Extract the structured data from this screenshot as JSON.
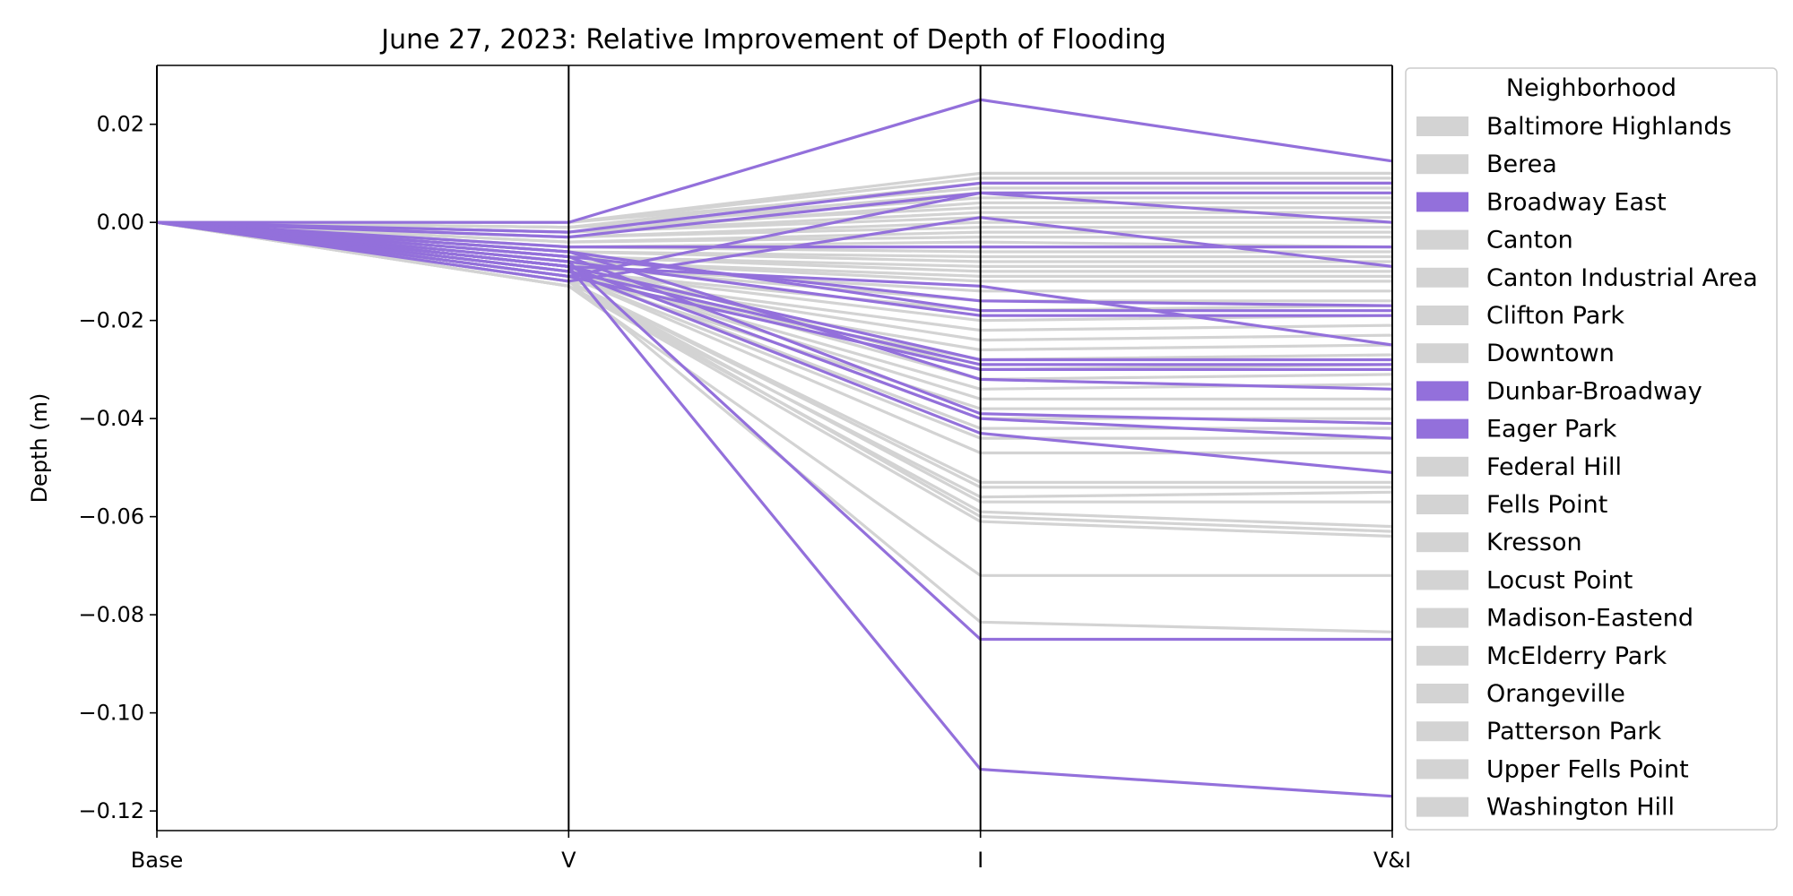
{
  "chart_data": {
    "type": "line",
    "title": "June 27, 2023: Relative Improvement of Depth of Flooding",
    "xlabel": "",
    "ylabel": "Depth (m)",
    "categories": [
      "Base",
      "V",
      "I",
      "V&I"
    ],
    "ylim": [
      -0.124,
      0.032
    ],
    "yticks": [
      0.02,
      0.0,
      -0.02,
      -0.04,
      -0.06,
      -0.08,
      -0.1,
      -0.12
    ],
    "ytick_labels": [
      "0.02",
      "0.00",
      "−0.02",
      "−0.04",
      "−0.06",
      "−0.08",
      "−0.10",
      "−0.12"
    ],
    "grid": false,
    "legend": {
      "title": "Neighborhood",
      "placement": "outside-right",
      "entries": [
        {
          "name": "Baltimore Highlands",
          "highlight": false
        },
        {
          "name": "Berea",
          "highlight": false
        },
        {
          "name": "Broadway East",
          "highlight": true
        },
        {
          "name": "Canton",
          "highlight": false
        },
        {
          "name": "Canton Industrial Area",
          "highlight": false
        },
        {
          "name": "Clifton Park",
          "highlight": false
        },
        {
          "name": "Downtown",
          "highlight": false
        },
        {
          "name": "Dunbar-Broadway",
          "highlight": true
        },
        {
          "name": "Eager Park",
          "highlight": true
        },
        {
          "name": "Federal Hill",
          "highlight": false
        },
        {
          "name": "Fells Point",
          "highlight": false
        },
        {
          "name": "Kresson",
          "highlight": false
        },
        {
          "name": "Locust Point",
          "highlight": false
        },
        {
          "name": "Madison-Eastend",
          "highlight": false
        },
        {
          "name": "McElderry Park",
          "highlight": false
        },
        {
          "name": "Orangeville",
          "highlight": false
        },
        {
          "name": "Patterson Park",
          "highlight": false
        },
        {
          "name": "Upper Fells Point",
          "highlight": false
        },
        {
          "name": "Washington Hill",
          "highlight": false
        }
      ]
    },
    "colors": {
      "highlight": "#9370db",
      "other": "#d3d3d3",
      "axis": "#000000"
    },
    "series_gray": [
      [
        0,
        0.0,
        0.01,
        0.01
      ],
      [
        0,
        0.0,
        0.009,
        0.009
      ],
      [
        0,
        -0.001,
        0.008,
        0.008
      ],
      [
        0,
        0.0,
        0.007,
        0.007
      ],
      [
        0,
        -0.001,
        0.006,
        0.006
      ],
      [
        0,
        -0.001,
        0.005,
        0.005
      ],
      [
        0,
        -0.002,
        0.004,
        0.004
      ],
      [
        0,
        -0.001,
        0.003,
        0.003
      ],
      [
        0,
        -0.002,
        0.002,
        0.002
      ],
      [
        0,
        -0.002,
        0.001,
        0.001
      ],
      [
        0,
        -0.003,
        0.0,
        0.0
      ],
      [
        0,
        -0.003,
        -0.001,
        -0.001
      ],
      [
        0,
        -0.004,
        -0.002,
        -0.002
      ],
      [
        0,
        -0.004,
        -0.003,
        -0.003
      ],
      [
        0,
        -0.005,
        -0.004,
        -0.005
      ],
      [
        0,
        -0.005,
        -0.006,
        -0.006
      ],
      [
        0,
        -0.006,
        -0.007,
        -0.007
      ],
      [
        0,
        -0.006,
        -0.008,
        -0.008
      ],
      [
        0,
        -0.007,
        -0.009,
        -0.009
      ],
      [
        0,
        -0.007,
        -0.01,
        -0.01
      ],
      [
        0,
        -0.008,
        -0.011,
        -0.011
      ],
      [
        0,
        -0.008,
        -0.012,
        -0.012
      ],
      [
        0,
        -0.009,
        -0.014,
        -0.014
      ],
      [
        0,
        -0.009,
        -0.016,
        -0.016
      ],
      [
        0,
        -0.01,
        -0.018,
        -0.017
      ],
      [
        0,
        -0.01,
        -0.02,
        -0.019
      ],
      [
        0,
        -0.011,
        -0.022,
        -0.021
      ],
      [
        0,
        -0.011,
        -0.024,
        -0.023
      ],
      [
        0,
        -0.012,
        -0.026,
        -0.025
      ],
      [
        0,
        -0.012,
        -0.028,
        -0.027
      ],
      [
        0,
        -0.008,
        -0.03,
        -0.029
      ],
      [
        0,
        -0.009,
        -0.032,
        -0.031
      ],
      [
        0,
        -0.01,
        -0.034,
        -0.033
      ],
      [
        0,
        -0.01,
        -0.036,
        -0.036
      ],
      [
        0,
        -0.011,
        -0.038,
        -0.038
      ],
      [
        0,
        -0.009,
        -0.04,
        -0.04
      ],
      [
        0,
        -0.01,
        -0.042,
        -0.042
      ],
      [
        0,
        -0.011,
        -0.044,
        -0.044
      ],
      [
        0,
        -0.011,
        -0.047,
        -0.047
      ],
      [
        0,
        -0.012,
        -0.053,
        -0.053
      ],
      [
        0,
        -0.012,
        -0.054,
        -0.054
      ],
      [
        0,
        -0.013,
        -0.056,
        -0.055
      ],
      [
        0,
        -0.012,
        -0.057,
        -0.057
      ],
      [
        0,
        -0.013,
        -0.059,
        -0.062
      ],
      [
        0,
        -0.012,
        -0.06,
        -0.063
      ],
      [
        0,
        -0.013,
        -0.061,
        -0.064
      ],
      [
        0,
        -0.013,
        -0.072,
        -0.072
      ],
      [
        0,
        -0.012,
        -0.0815,
        -0.0835
      ]
    ],
    "series_highlight": [
      [
        0,
        0.0,
        0.025,
        0.0125
      ],
      [
        0,
        -0.002,
        0.008,
        0.008
      ],
      [
        0,
        -0.003,
        0.006,
        0.006
      ],
      [
        0,
        -0.011,
        0.006,
        0.0
      ],
      [
        0,
        -0.012,
        0.001,
        -0.009
      ],
      [
        0,
        -0.005,
        -0.005,
        -0.005
      ],
      [
        0,
        -0.009,
        -0.013,
        -0.025
      ],
      [
        0,
        -0.007,
        -0.016,
        -0.017
      ],
      [
        0,
        -0.006,
        -0.018,
        -0.018
      ],
      [
        0,
        -0.008,
        -0.019,
        -0.019
      ],
      [
        0,
        -0.009,
        -0.028,
        -0.028
      ],
      [
        0,
        -0.01,
        -0.029,
        -0.029
      ],
      [
        0,
        -0.011,
        -0.03,
        -0.03
      ],
      [
        0,
        -0.006,
        -0.032,
        -0.034
      ],
      [
        0,
        -0.007,
        -0.039,
        -0.041
      ],
      [
        0,
        -0.009,
        -0.04,
        -0.044
      ],
      [
        0,
        -0.01,
        -0.043,
        -0.051
      ],
      [
        0,
        -0.008,
        -0.085,
        -0.085
      ],
      [
        0,
        -0.009,
        -0.1115,
        -0.117
      ]
    ]
  }
}
